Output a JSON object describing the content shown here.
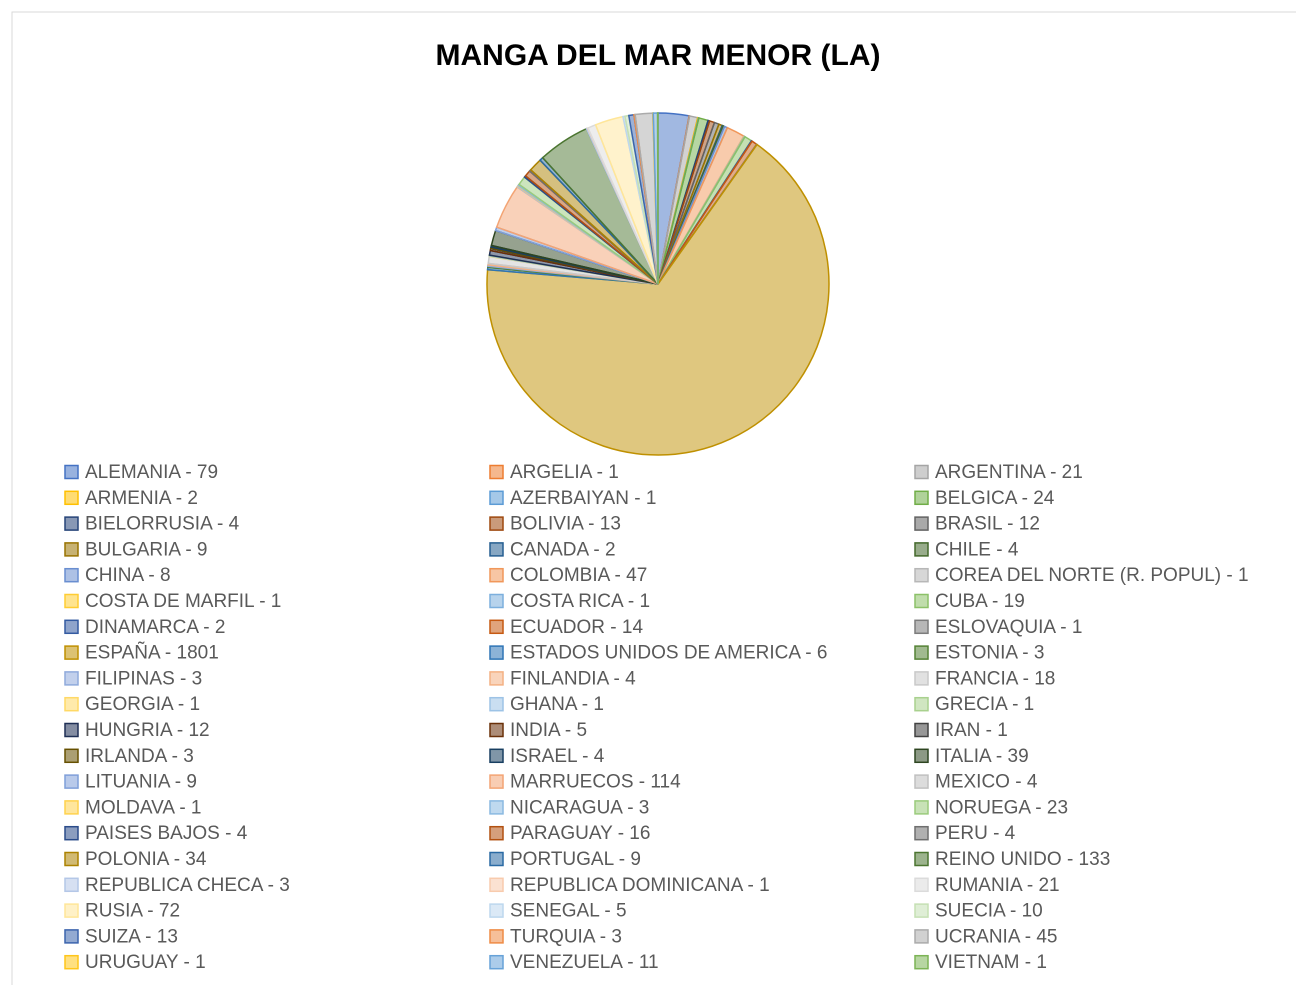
{
  "chart_data": {
    "type": "pie",
    "title": "MANGA DEL MAR MENOR (LA)",
    "categories": [
      "ALEMANIA - 79",
      "ARGELIA - 1",
      "ARGENTINA - 21",
      "ARMENIA - 2",
      "AZERBAIYAN - 1",
      "BELGICA - 24",
      "BIELORRUSIA - 4",
      "BOLIVIA - 13",
      "BRASIL - 12",
      "BULGARIA - 9",
      "CANADA - 2",
      "CHILE - 4",
      "CHINA - 8",
      "COLOMBIA - 47",
      "COREA DEL NORTE (R. POPUL) - 1",
      "COSTA DE MARFIL - 1",
      "COSTA RICA - 1",
      "CUBA - 19",
      "DINAMARCA - 2",
      "ECUADOR - 14",
      "ESLOVAQUIA - 1",
      "ESPAÑA - 1801",
      "ESTADOS UNIDOS DE AMERICA - 6",
      "ESTONIA - 3",
      "FILIPINAS - 3",
      "FINLANDIA - 4",
      "FRANCIA - 18",
      "GEORGIA - 1",
      "GHANA - 1",
      "GRECIA - 1",
      "HUNGRIA - 12",
      "INDIA - 5",
      "IRAN - 1",
      "IRLANDA - 3",
      "ISRAEL - 4",
      "ITALIA - 39",
      "LITUANIA - 9",
      "MARRUECOS - 114",
      "MEXICO - 4",
      "MOLDAVA - 1",
      "NICARAGUA - 3",
      "NORUEGA - 23",
      "PAISES BAJOS - 4",
      "PARAGUAY - 16",
      "PERU - 4",
      "POLONIA - 34",
      "PORTUGAL - 9",
      "REINO UNIDO - 133",
      "REPUBLICA CHECA - 3",
      "REPUBLICA DOMINICANA - 1",
      "RUMANIA - 21",
      "RUSIA - 72",
      "SENEGAL - 5",
      "SUECIA - 10",
      "SUIZA - 13",
      "TURQUIA - 3",
      "UCRANIA - 45",
      "URUGUAY - 1",
      "VENEZUELA - 11",
      "VIETNAM - 1"
    ],
    "values": [
      79,
      1,
      21,
      2,
      1,
      24,
      4,
      13,
      12,
      9,
      2,
      4,
      8,
      47,
      1,
      1,
      1,
      19,
      2,
      14,
      1,
      1801,
      6,
      3,
      3,
      4,
      18,
      1,
      1,
      1,
      12,
      5,
      1,
      3,
      4,
      39,
      9,
      114,
      4,
      1,
      3,
      23,
      4,
      16,
      4,
      34,
      9,
      133,
      3,
      1,
      21,
      72,
      5,
      10,
      13,
      3,
      45,
      1,
      11,
      1
    ],
    "colors": [
      "#4472c4",
      "#ed7d31",
      "#a5a5a5",
      "#ffc000",
      "#5b9bd5",
      "#70ad47",
      "#264478",
      "#9e480e",
      "#636363",
      "#997300",
      "#255e91",
      "#43682b",
      "#698ed0",
      "#f1975a",
      "#b7b7b7",
      "#ffcd33",
      "#7cafdd",
      "#8cc168",
      "#335aa1",
      "#c65911",
      "#7c7c7c",
      "#bf9000",
      "#2e75b6",
      "#548235",
      "#8faadc",
      "#f4b183",
      "#c9c9c9",
      "#ffd966",
      "#9dc3e6",
      "#a9d18e",
      "#1f2f55",
      "#6a3009",
      "#424242",
      "#665000",
      "#183f61",
      "#2d4520",
      "#7f9fd9",
      "#f3a474",
      "#c0c0c0",
      "#ffd24d",
      "#8ab9e1",
      "#9acb7c",
      "#2b4c8a",
      "#b25010",
      "#6f6f6f",
      "#ac8200",
      "#2a6aa4",
      "#4b7530",
      "#b4c7e7",
      "#f8cbad",
      "#dbdbdb",
      "#ffe699",
      "#bdd7ee",
      "#c5e0b4",
      "#3b64ad",
      "#ef8b45",
      "#ababab",
      "#ffc61a",
      "#67a2d8",
      "#7cb455"
    ],
    "legend": "bottom"
  }
}
